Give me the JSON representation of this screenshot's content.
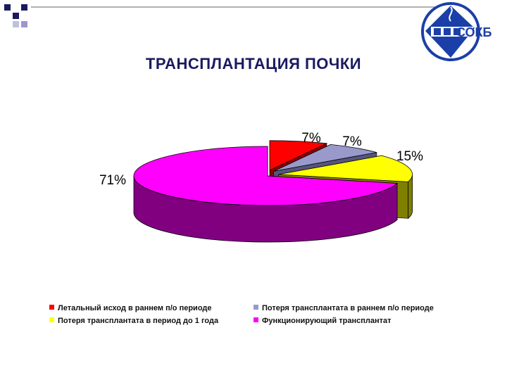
{
  "title": "ТРАНСПЛАНТАЦИЯ ПОЧКИ",
  "logo": {
    "text": "СОКБ",
    "colors": {
      "primary": "#1a3fa8",
      "secondary": "#ffffff"
    }
  },
  "chart_data": {
    "type": "pie",
    "style": "3d-exploded",
    "title": "ТРАНСПЛАНТАЦИЯ ПОЧКИ",
    "categories": [
      "Летальный исход в раннем п/о периоде",
      "Потеря трансплантата в раннем п/о периоде",
      "Потеря трансплантата в период до 1 года",
      "Функционирующий трансплантат"
    ],
    "values": [
      7,
      7,
      15,
      71
    ],
    "data_labels": [
      "7%",
      "7%",
      "15%",
      "71%"
    ],
    "colors": [
      "#ff0000",
      "#9999cc",
      "#ffff00",
      "#ff00ff"
    ],
    "side_colors": [
      "#8b0000",
      "#55557f",
      "#808000",
      "#800080"
    ],
    "legend_position": "bottom"
  }
}
